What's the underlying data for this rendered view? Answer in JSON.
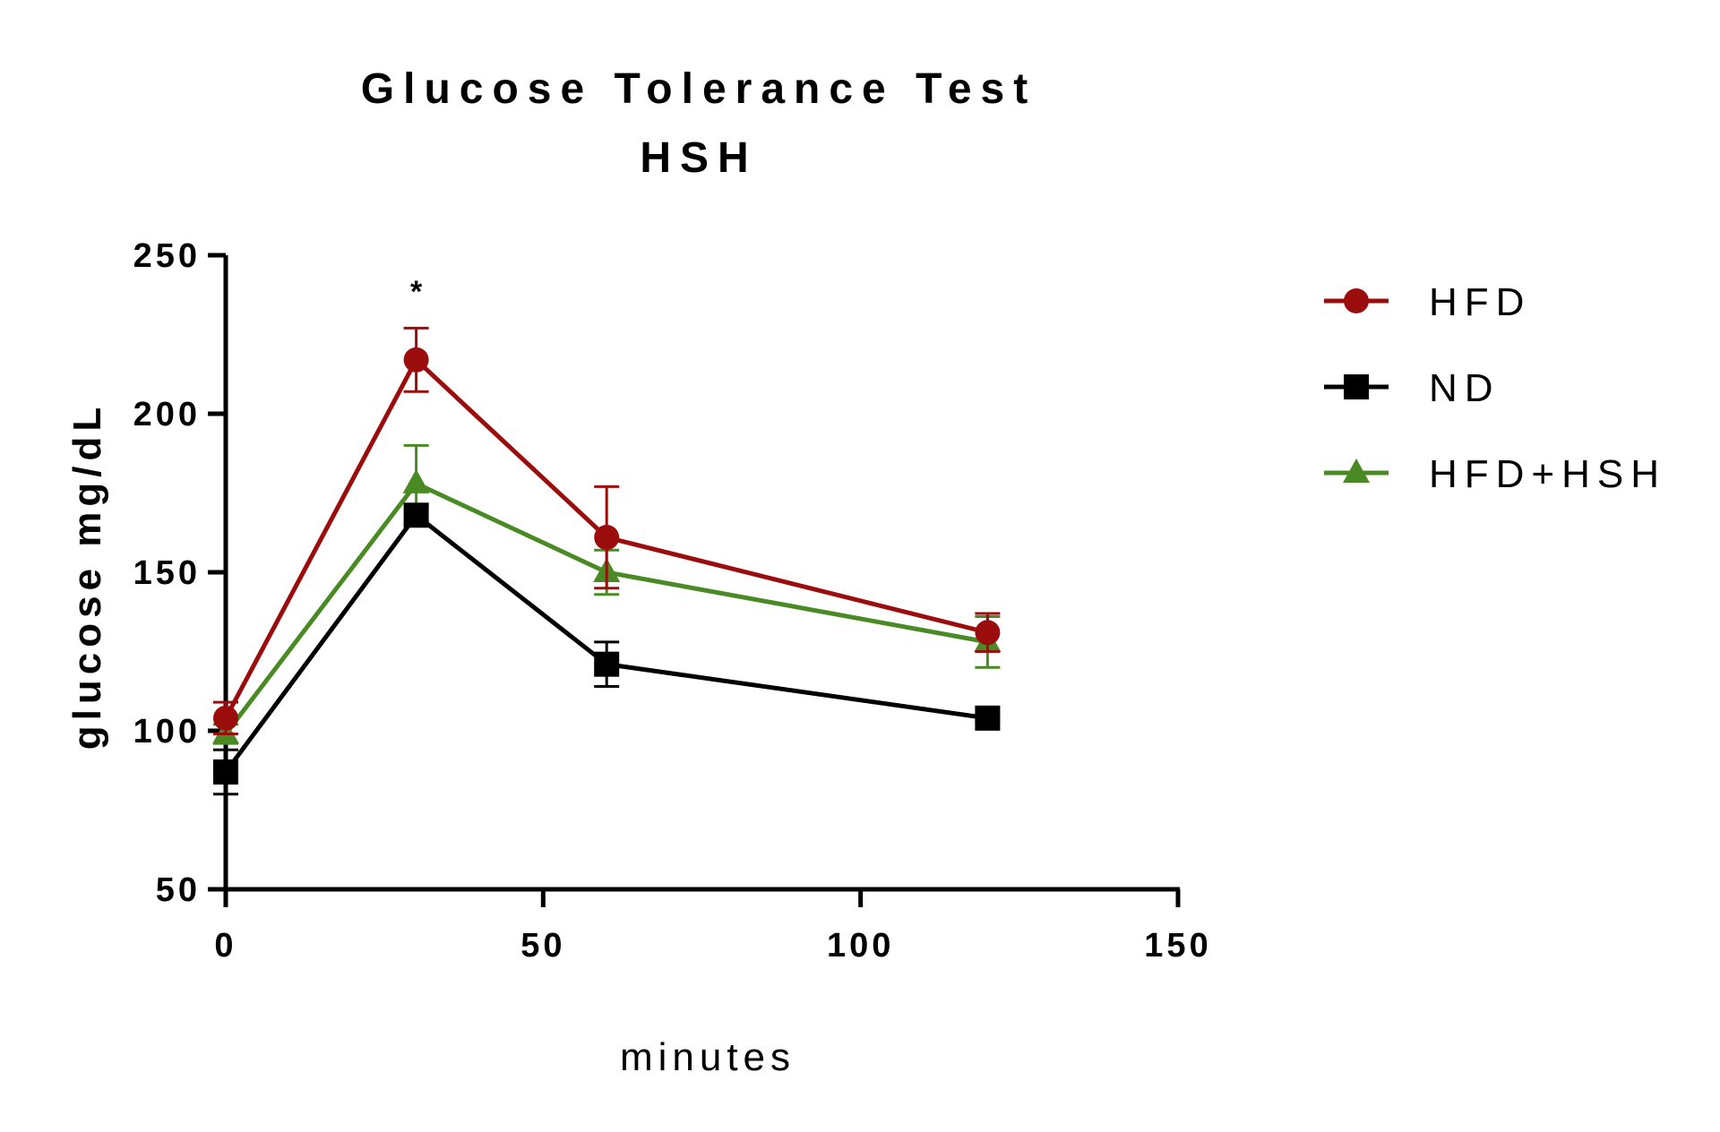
{
  "chart_data": {
    "type": "line",
    "title": "Glucose Tolerance Test",
    "subtitle": "HSH",
    "xlabel": "minutes",
    "ylabel": "glucose mg/dL",
    "xlim": [
      0,
      150
    ],
    "ylim": [
      50,
      250
    ],
    "xticks": [
      0,
      50,
      100,
      150
    ],
    "yticks": [
      50,
      100,
      150,
      200,
      250
    ],
    "x": [
      0,
      30,
      60,
      120
    ],
    "grid": false,
    "legend_position": "right",
    "annotations": [
      {
        "text": "*",
        "x": 30
      }
    ],
    "series": [
      {
        "name": "HFD",
        "color": "#9b0d0d",
        "marker": "circle",
        "values": [
          104,
          217,
          161,
          131
        ],
        "errors": [
          5,
          10,
          16,
          6
        ]
      },
      {
        "name": "ND",
        "color": "#000000",
        "marker": "square",
        "values": [
          87,
          168,
          121,
          104
        ],
        "errors": [
          7,
          3,
          7,
          1
        ]
      },
      {
        "name": "HFD+HSH",
        "color": "#4a8a25",
        "marker": "triangle",
        "values": [
          99,
          178,
          150,
          128
        ],
        "errors": [
          3,
          12,
          7,
          8
        ]
      }
    ]
  }
}
